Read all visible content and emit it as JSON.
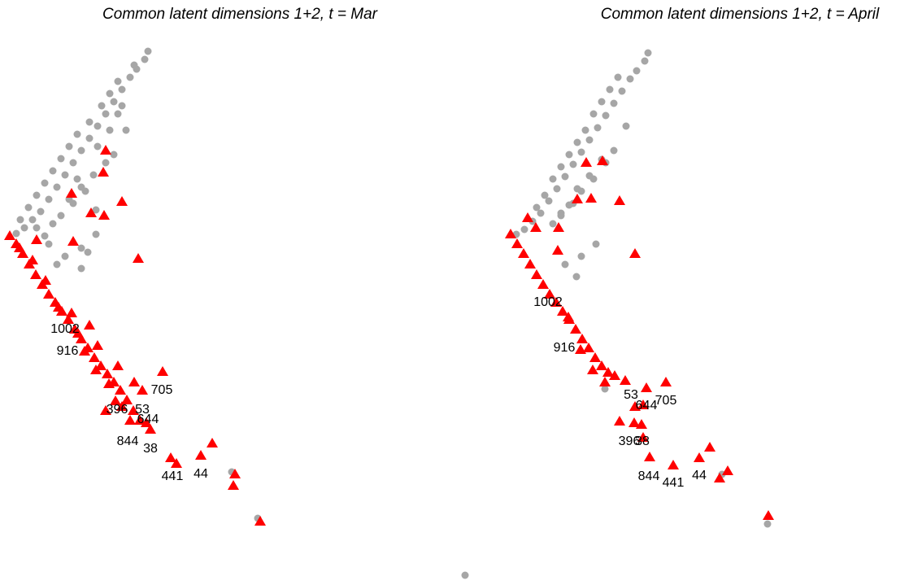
{
  "chart_data": [
    {
      "type": "scatter",
      "title": "Common latent dimensions 1+2, t = Mar",
      "xlim": [
        0,
        559
      ],
      "ylim": [
        0,
        679
      ],
      "series": [
        {
          "color": "#a6a6a6",
          "marker": "circle",
          "x": [
            182,
            178,
            168,
            160,
            150,
            140,
            130,
            120,
            110,
            100,
            90,
            80,
            70,
            60,
            50,
            40,
            30,
            20,
            155,
            140,
            130,
            115,
            100,
            90,
            75,
            65,
            118,
            100,
            80,
            70,
            100,
            60,
            125,
            110,
            95,
            85,
            75,
            65,
            55,
            45,
            35,
            25,
            165,
            145,
            135,
            285,
            317,
            105,
            85,
            95,
            120,
            135,
            145,
            150,
            45,
            55,
            108,
            118
          ],
          "y": [
            656,
            646,
            634,
            624,
            609,
            594,
            579,
            564,
            549,
            534,
            519,
            504,
            489,
            474,
            459,
            449,
            439,
            432,
            559,
            529,
            519,
            504,
            489,
            469,
            454,
            444,
            431,
            414,
            404,
            394,
            389,
            419,
            589,
            569,
            554,
            539,
            524,
            509,
            494,
            479,
            464,
            449,
            639,
            619,
            604,
            139,
            82,
            484,
            474,
            499,
            539,
            559,
            579,
            589,
            439,
            429,
            409,
            461
          ]
        },
        {
          "color": "#ff0000",
          "marker": "triangle",
          "x": [
            12,
            20,
            28,
            36,
            44,
            52,
            60,
            68,
            76,
            84,
            92,
            100,
            108,
            116,
            124,
            132,
            140,
            148,
            156,
            164,
            172,
            180,
            185,
            200,
            175,
            145,
            120,
            110,
            130,
            127,
            150,
            112,
            128,
            88,
            45,
            90,
            170,
            210,
            217,
            247,
            261,
            289,
            287,
            320,
            160,
            150,
            165,
            130,
            24,
            40,
            56,
            72,
            88,
            96,
            104,
            118,
            134,
            142
          ],
          "y": [
            429,
            419,
            407,
            394,
            381,
            369,
            357,
            347,
            336,
            326,
            314,
            302,
            291,
            279,
            269,
            259,
            249,
            239,
            227,
            214,
            202,
            199,
            191,
            262,
            239,
            269,
            294,
            319,
            534,
            507,
            471,
            457,
            454,
            481,
            424,
            422,
            401,
            156,
            149,
            159,
            174,
            136,
            122,
            78,
            202,
            219,
            249,
            214,
            414,
            399,
            374,
            341,
            334,
            309,
            287,
            264,
            247,
            226
          ]
        }
      ],
      "annotations": [
        {
          "text": "1002",
          "x": 80,
          "y": 314
        },
        {
          "text": "916",
          "x": 83,
          "y": 287
        },
        {
          "text": "705",
          "x": 199,
          "y": 239
        },
        {
          "text": "396",
          "x": 144,
          "y": 215
        },
        {
          "text": "53",
          "x": 175,
          "y": 215
        },
        {
          "text": "644",
          "x": 182,
          "y": 203
        },
        {
          "text": "844",
          "x": 157,
          "y": 176
        },
        {
          "text": "38",
          "x": 185,
          "y": 167
        },
        {
          "text": "441",
          "x": 212,
          "y": 133
        },
        {
          "text": "44",
          "x": 247,
          "y": 136
        }
      ]
    },
    {
      "type": "scatter",
      "title": "Common latent dimensions 1+2, t = April",
      "xlim": [
        0,
        559
      ],
      "ylim": [
        0,
        679
      ],
      "series": [
        {
          "color": "#a6a6a6",
          "marker": "circle",
          "x": [
            238,
            234,
            224,
            216,
            206,
            196,
            186,
            176,
            166,
            156,
            146,
            136,
            126,
            116,
            106,
            96,
            86,
            76,
            211,
            196,
            186,
            171,
            156,
            146,
            131,
            121,
            174,
            156,
            136,
            150,
            181,
            166,
            151,
            141,
            131,
            201,
            191,
            181,
            171,
            161,
            151,
            141,
            131,
            121,
            111,
            101,
            385,
            185,
            329,
            13
          ],
          "y": [
            654,
            644,
            632,
            622,
            607,
            592,
            577,
            562,
            547,
            532,
            517,
            502,
            487,
            472,
            457,
            447,
            437,
            431,
            564,
            534,
            519,
            499,
            484,
            469,
            454,
            444,
            419,
            404,
            394,
            379,
            523,
            503,
            487,
            467,
            457,
            624,
            609,
            594,
            579,
            559,
            544,
            529,
            514,
            499,
            479,
            464,
            75,
            241,
            136,
            12
          ]
        },
        {
          "color": "#ff0000",
          "marker": "triangle",
          "x": [
            69,
            77,
            85,
            93,
            101,
            109,
            117,
            125,
            133,
            141,
            149,
            157,
            165,
            173,
            181,
            189,
            197,
            210,
            236,
            260,
            222,
            232,
            203,
            230,
            221,
            232,
            240,
            269,
            301,
            314,
            326,
            336,
            386,
            162,
            182,
            168,
            151,
            203,
            222,
            127,
            90,
            100,
            128,
            140,
            155,
            170,
            185
          ],
          "y": [
            431,
            419,
            407,
            394,
            381,
            369,
            357,
            347,
            336,
            326,
            314,
            302,
            291,
            279,
            269,
            261,
            257,
            251,
            242,
            249,
            219,
            221,
            201,
            197,
            199,
            181,
            157,
            147,
            156,
            169,
            131,
            140,
            85,
            519,
            521,
            475,
            474,
            472,
            407,
            411,
            451,
            439,
            439,
            329,
            289,
            264,
            249
          ]
        }
      ],
      "annotations": [
        {
          "text": "1002",
          "x": 115,
          "y": 347
        },
        {
          "text": "916",
          "x": 135,
          "y": 291
        },
        {
          "text": "53",
          "x": 217,
          "y": 233
        },
        {
          "text": "644",
          "x": 236,
          "y": 220
        },
        {
          "text": "705",
          "x": 260,
          "y": 226
        },
        {
          "text": "396",
          "x": 215,
          "y": 176
        },
        {
          "text": "38",
          "x": 231,
          "y": 176
        },
        {
          "text": "844",
          "x": 239,
          "y": 133
        },
        {
          "text": "441",
          "x": 269,
          "y": 125
        },
        {
          "text": "44",
          "x": 301,
          "y": 134
        }
      ]
    }
  ]
}
